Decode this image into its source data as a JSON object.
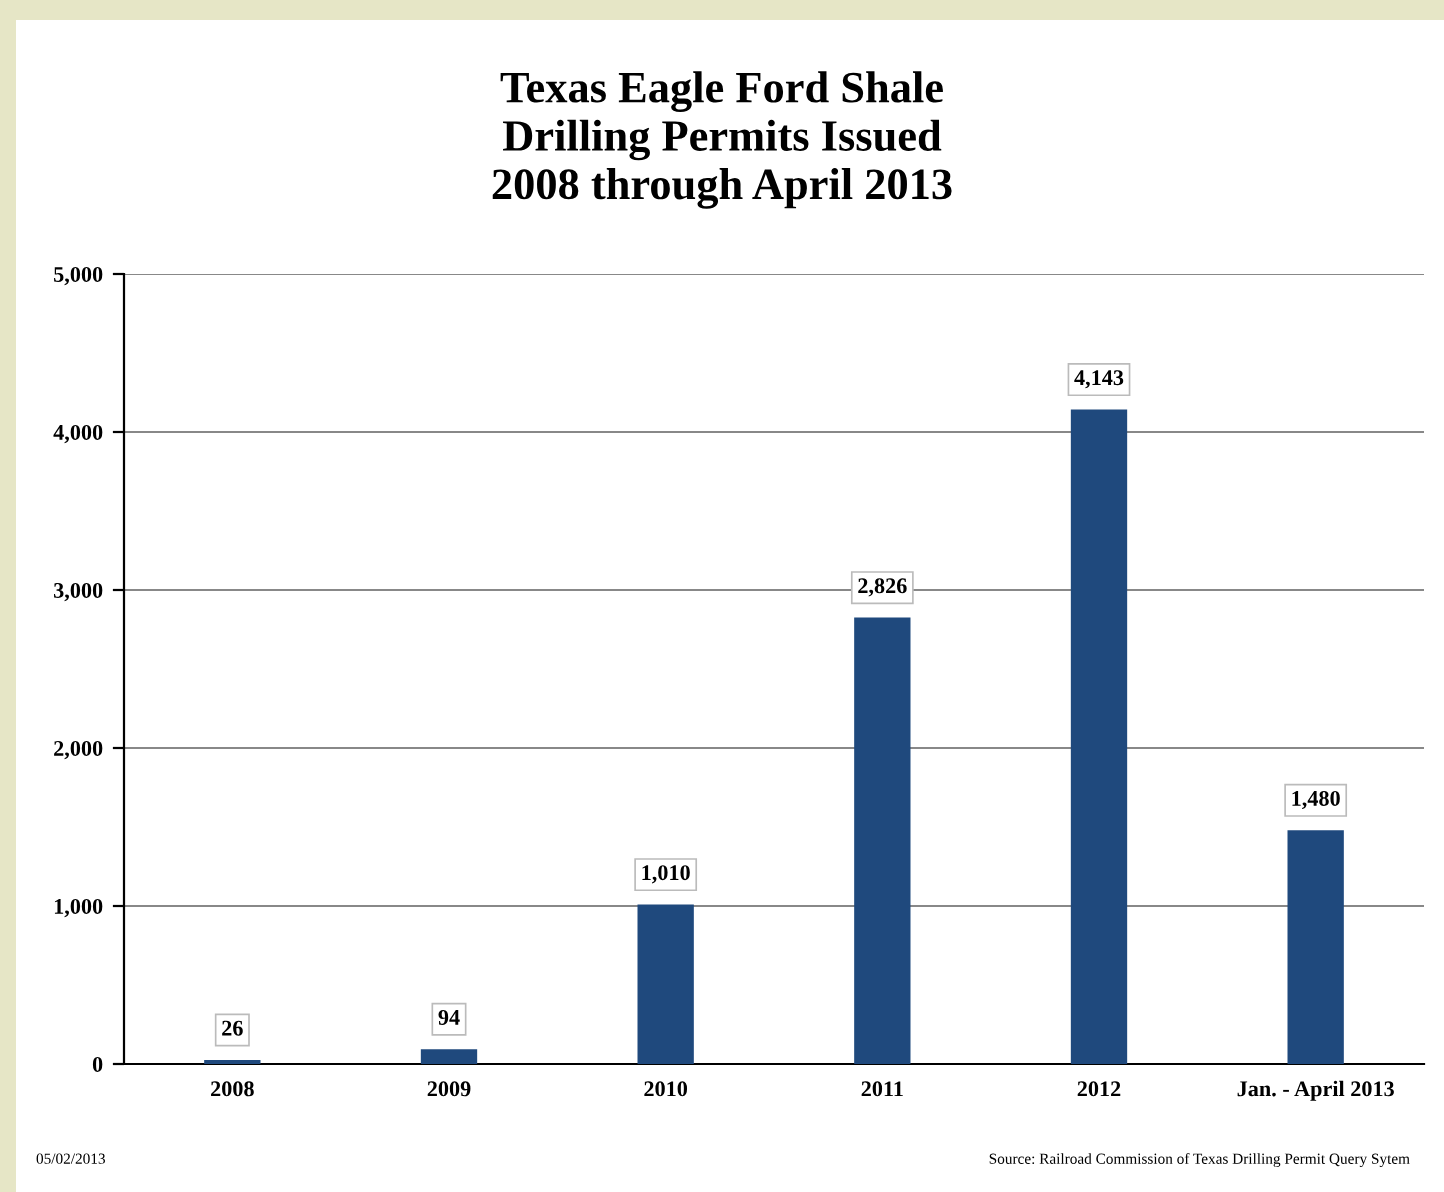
{
  "chart_data": {
    "type": "bar",
    "title": "Texas Eagle Ford Shale\nDrilling Permits Issued\n2008 through April 2013",
    "categories": [
      "2008",
      "2009",
      "2010",
      "2011",
      "2012",
      "Jan. - April 2013"
    ],
    "values": [
      26,
      94,
      1010,
      2826,
      4143,
      1480
    ],
    "color": "#1f497d",
    "ylim": [
      0,
      5000
    ],
    "yticks": [
      {
        "value": 0,
        "label": "0"
      },
      {
        "value": 1000,
        "label": "1,000"
      },
      {
        "value": 2000,
        "label": "2,000"
      },
      {
        "value": 3000,
        "label": "3,000"
      },
      {
        "value": 4000,
        "label": "4,000"
      },
      {
        "value": 5000,
        "label": "5,000"
      }
    ],
    "value_labels": [
      "26",
      "94",
      "1,010",
      "2,826",
      "4,143",
      "1,480"
    ],
    "grid": "y",
    "legend": false,
    "annotations": [
      "05/02/2013",
      "Source: Railroad Commission of Texas Drilling Permit Query Sytem"
    ]
  }
}
